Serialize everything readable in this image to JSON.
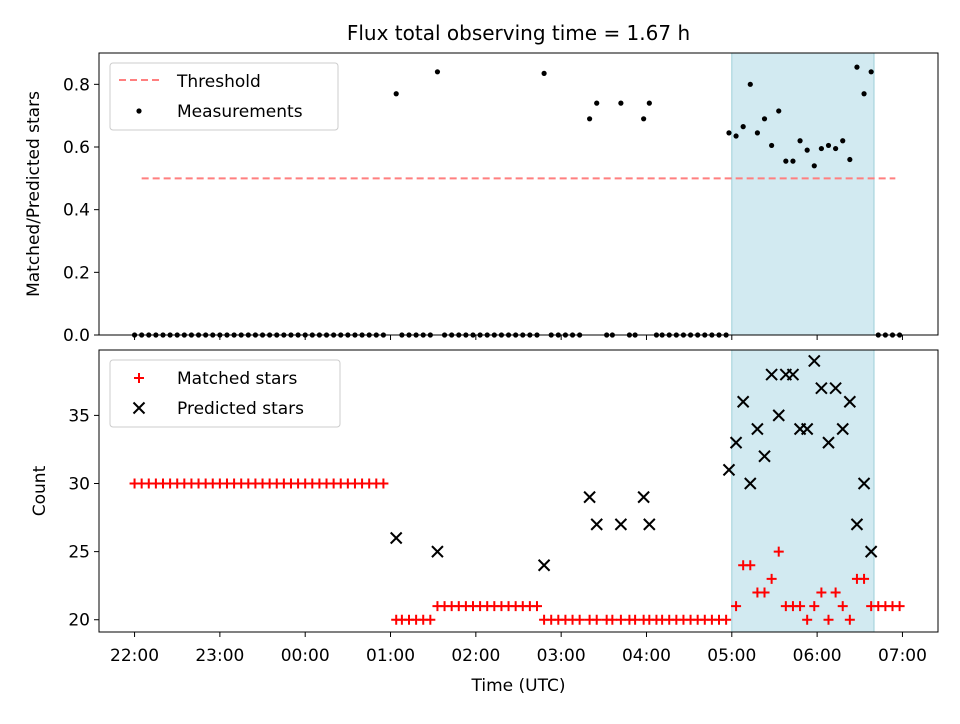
{
  "chart_data": [
    {
      "type": "scatter",
      "title": "Flux total observing time = 1.67 h",
      "xlabel": "",
      "ylabel": "Matched/Predicted stars",
      "ylim": [
        0,
        0.9
      ],
      "y_ticks": [
        "0.0",
        "0.2",
        "0.4",
        "0.6",
        "0.8"
      ],
      "y_tick_values": [
        0,
        0.2,
        0.4,
        0.6,
        0.8
      ],
      "highlight_span": [
        "05:00",
        "06:40"
      ],
      "highlight_color": "#add8e6",
      "legend_position": "top-left",
      "threshold": {
        "name": "Threshold",
        "value": 0.5,
        "x_range": [
          "22:05",
          "06:55"
        ],
        "color": "#ff7f7f"
      },
      "series": [
        {
          "name": "Measurements",
          "color": "#000000",
          "marker": "dot",
          "points": [
            [
              "22:00",
              0
            ],
            [
              "22:05",
              0
            ],
            [
              "22:10",
              0
            ],
            [
              "22:15",
              0
            ],
            [
              "22:20",
              0
            ],
            [
              "22:25",
              0
            ],
            [
              "22:30",
              0
            ],
            [
              "22:35",
              0
            ],
            [
              "22:40",
              0
            ],
            [
              "22:45",
              0
            ],
            [
              "22:50",
              0
            ],
            [
              "22:55",
              0
            ],
            [
              "23:00",
              0
            ],
            [
              "23:05",
              0
            ],
            [
              "23:10",
              0
            ],
            [
              "23:15",
              0
            ],
            [
              "23:20",
              0
            ],
            [
              "23:25",
              0
            ],
            [
              "23:30",
              0
            ],
            [
              "23:35",
              0
            ],
            [
              "23:40",
              0
            ],
            [
              "23:45",
              0
            ],
            [
              "23:50",
              0
            ],
            [
              "23:55",
              0
            ],
            [
              "00:00",
              0
            ],
            [
              "00:05",
              0
            ],
            [
              "00:10",
              0
            ],
            [
              "00:15",
              0
            ],
            [
              "00:20",
              0
            ],
            [
              "00:25",
              0
            ],
            [
              "00:30",
              0
            ],
            [
              "00:35",
              0
            ],
            [
              "00:40",
              0
            ],
            [
              "00:45",
              0
            ],
            [
              "00:50",
              0
            ],
            [
              "00:55",
              0
            ],
            [
              "01:04",
              0.77
            ],
            [
              "01:08",
              0
            ],
            [
              "01:13",
              0
            ],
            [
              "01:18",
              0
            ],
            [
              "01:23",
              0
            ],
            [
              "01:28",
              0
            ],
            [
              "01:33",
              0.84
            ],
            [
              "01:38",
              0
            ],
            [
              "01:43",
              0
            ],
            [
              "01:48",
              0
            ],
            [
              "01:53",
              0
            ],
            [
              "01:58",
              0
            ],
            [
              "02:03",
              0
            ],
            [
              "02:08",
              0
            ],
            [
              "02:13",
              0
            ],
            [
              "02:18",
              0
            ],
            [
              "02:23",
              0
            ],
            [
              "02:28",
              0
            ],
            [
              "02:33",
              0
            ],
            [
              "02:38",
              0
            ],
            [
              "02:43",
              0
            ],
            [
              "02:48",
              0.835
            ],
            [
              "02:53",
              0
            ],
            [
              "02:58",
              0
            ],
            [
              "03:03",
              0
            ],
            [
              "03:08",
              0
            ],
            [
              "03:13",
              0
            ],
            [
              "03:20",
              0.69
            ],
            [
              "03:25",
              0.74
            ],
            [
              "03:32",
              0
            ],
            [
              "03:36",
              0
            ],
            [
              "03:42",
              0.74
            ],
            [
              "03:48",
              0
            ],
            [
              "03:52",
              0
            ],
            [
              "03:58",
              0.69
            ],
            [
              "04:02",
              0.74
            ],
            [
              "04:07",
              0
            ],
            [
              "04:11",
              0
            ],
            [
              "04:16",
              0
            ],
            [
              "04:21",
              0
            ],
            [
              "04:26",
              0
            ],
            [
              "04:31",
              0
            ],
            [
              "04:36",
              0
            ],
            [
              "04:41",
              0
            ],
            [
              "04:46",
              0
            ],
            [
              "04:51",
              0
            ],
            [
              "04:56",
              0
            ],
            [
              "04:58",
              0.645
            ],
            [
              "05:03",
              0.635
            ],
            [
              "05:08",
              0.665
            ],
            [
              "05:13",
              0.8
            ],
            [
              "05:18",
              0.645
            ],
            [
              "05:23",
              0.69
            ],
            [
              "05:28",
              0.605
            ],
            [
              "05:33",
              0.715
            ],
            [
              "05:38",
              0.555
            ],
            [
              "05:43",
              0.555
            ],
            [
              "05:48",
              0.62
            ],
            [
              "05:53",
              0.59
            ],
            [
              "05:58",
              0.54
            ],
            [
              "06:03",
              0.595
            ],
            [
              "06:08",
              0.605
            ],
            [
              "06:13",
              0.595
            ],
            [
              "06:18",
              0.62
            ],
            [
              "06:23",
              0.56
            ],
            [
              "06:28",
              0.855
            ],
            [
              "06:33",
              0.77
            ],
            [
              "06:38",
              0.84
            ],
            [
              "06:43",
              0
            ],
            [
              "06:48",
              0
            ],
            [
              "06:53",
              0
            ],
            [
              "06:58",
              0
            ]
          ]
        }
      ]
    },
    {
      "type": "scatter",
      "title": "",
      "xlabel": "Time (UTC)",
      "ylabel": "Count",
      "ylim": [
        19.1,
        39.8
      ],
      "y_ticks": [
        "20",
        "25",
        "30",
        "35"
      ],
      "y_tick_values": [
        20,
        25,
        30,
        35
      ],
      "x_ticks": [
        "22:00",
        "23:00",
        "00:00",
        "01:00",
        "02:00",
        "03:00",
        "04:00",
        "05:00",
        "06:00",
        "07:00"
      ],
      "x_range": [
        "21:35",
        "07:25"
      ],
      "highlight_span": [
        "05:00",
        "06:40"
      ],
      "highlight_color": "#add8e6",
      "legend_position": "top-left",
      "series": [
        {
          "name": "Matched stars",
          "color": "#ff0000",
          "marker": "plus",
          "points": [
            [
              "22:00",
              30
            ],
            [
              "22:05",
              30
            ],
            [
              "22:10",
              30
            ],
            [
              "22:15",
              30
            ],
            [
              "22:20",
              30
            ],
            [
              "22:25",
              30
            ],
            [
              "22:30",
              30
            ],
            [
              "22:35",
              30
            ],
            [
              "22:40",
              30
            ],
            [
              "22:45",
              30
            ],
            [
              "22:50",
              30
            ],
            [
              "22:55",
              30
            ],
            [
              "23:00",
              30
            ],
            [
              "23:05",
              30
            ],
            [
              "23:10",
              30
            ],
            [
              "23:15",
              30
            ],
            [
              "23:20",
              30
            ],
            [
              "23:25",
              30
            ],
            [
              "23:30",
              30
            ],
            [
              "23:35",
              30
            ],
            [
              "23:40",
              30
            ],
            [
              "23:45",
              30
            ],
            [
              "23:50",
              30
            ],
            [
              "23:55",
              30
            ],
            [
              "00:00",
              30
            ],
            [
              "00:05",
              30
            ],
            [
              "00:10",
              30
            ],
            [
              "00:15",
              30
            ],
            [
              "00:20",
              30
            ],
            [
              "00:25",
              30
            ],
            [
              "00:30",
              30
            ],
            [
              "00:35",
              30
            ],
            [
              "00:40",
              30
            ],
            [
              "00:45",
              30
            ],
            [
              "00:50",
              30
            ],
            [
              "00:55",
              30
            ],
            [
              "01:04",
              20
            ],
            [
              "01:08",
              20
            ],
            [
              "01:13",
              20
            ],
            [
              "01:18",
              20
            ],
            [
              "01:23",
              20
            ],
            [
              "01:28",
              20
            ],
            [
              "01:33",
              21
            ],
            [
              "01:38",
              21
            ],
            [
              "01:43",
              21
            ],
            [
              "01:48",
              21
            ],
            [
              "01:53",
              21
            ],
            [
              "01:58",
              21
            ],
            [
              "02:03",
              21
            ],
            [
              "02:08",
              21
            ],
            [
              "02:13",
              21
            ],
            [
              "02:18",
              21
            ],
            [
              "02:23",
              21
            ],
            [
              "02:28",
              21
            ],
            [
              "02:33",
              21
            ],
            [
              "02:38",
              21
            ],
            [
              "02:43",
              21
            ],
            [
              "02:48",
              20
            ],
            [
              "02:53",
              20
            ],
            [
              "02:58",
              20
            ],
            [
              "03:03",
              20
            ],
            [
              "03:08",
              20
            ],
            [
              "03:13",
              20
            ],
            [
              "03:20",
              20
            ],
            [
              "03:25",
              20
            ],
            [
              "03:32",
              20
            ],
            [
              "03:36",
              20
            ],
            [
              "03:42",
              20
            ],
            [
              "03:48",
              20
            ],
            [
              "03:52",
              20
            ],
            [
              "03:58",
              20
            ],
            [
              "04:02",
              20
            ],
            [
              "04:07",
              20
            ],
            [
              "04:11",
              20
            ],
            [
              "04:16",
              20
            ],
            [
              "04:21",
              20
            ],
            [
              "04:26",
              20
            ],
            [
              "04:31",
              20
            ],
            [
              "04:36",
              20
            ],
            [
              "04:41",
              20
            ],
            [
              "04:46",
              20
            ],
            [
              "04:51",
              20
            ],
            [
              "04:56",
              20
            ],
            [
              "05:03",
              21
            ],
            [
              "05:08",
              24
            ],
            [
              "05:13",
              24
            ],
            [
              "05:18",
              22
            ],
            [
              "05:23",
              22
            ],
            [
              "05:28",
              23
            ],
            [
              "05:33",
              25
            ],
            [
              "05:38",
              21
            ],
            [
              "05:43",
              21
            ],
            [
              "05:48",
              21
            ],
            [
              "05:53",
              20
            ],
            [
              "05:58",
              21
            ],
            [
              "06:03",
              22
            ],
            [
              "06:08",
              20
            ],
            [
              "06:13",
              22
            ],
            [
              "06:18",
              21
            ],
            [
              "06:23",
              20
            ],
            [
              "06:28",
              23
            ],
            [
              "06:33",
              23
            ],
            [
              "06:38",
              21
            ],
            [
              "06:43",
              21
            ],
            [
              "06:48",
              21
            ],
            [
              "06:53",
              21
            ],
            [
              "06:58",
              21
            ]
          ]
        },
        {
          "name": "Predicted stars",
          "color": "#000000",
          "marker": "x",
          "points": [
            [
              "01:04",
              26
            ],
            [
              "01:33",
              25
            ],
            [
              "02:48",
              24
            ],
            [
              "03:20",
              29
            ],
            [
              "03:25",
              27
            ],
            [
              "03:42",
              27
            ],
            [
              "03:58",
              29
            ],
            [
              "04:02",
              27
            ],
            [
              "04:58",
              31
            ],
            [
              "05:03",
              33
            ],
            [
              "05:08",
              36
            ],
            [
              "05:13",
              30
            ],
            [
              "05:18",
              34
            ],
            [
              "05:23",
              32
            ],
            [
              "05:28",
              38
            ],
            [
              "05:33",
              35
            ],
            [
              "05:38",
              38
            ],
            [
              "05:43",
              38
            ],
            [
              "05:48",
              34
            ],
            [
              "05:53",
              34
            ],
            [
              "05:58",
              39
            ],
            [
              "06:03",
              37
            ],
            [
              "06:08",
              33
            ],
            [
              "06:13",
              37
            ],
            [
              "06:18",
              34
            ],
            [
              "06:23",
              36
            ],
            [
              "06:28",
              27
            ],
            [
              "06:33",
              30
            ],
            [
              "06:38",
              25
            ]
          ]
        }
      ]
    }
  ]
}
